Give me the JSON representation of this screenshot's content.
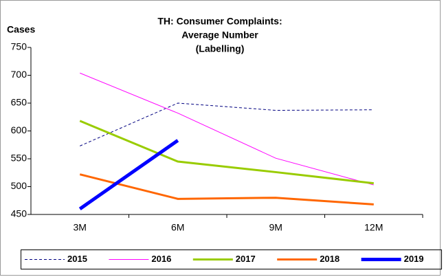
{
  "chart_data": {
    "type": "line",
    "title": [
      "TH: Consumer Complaints:",
      "Average Number",
      "(Labelling)"
    ],
    "y_label": "Cases",
    "categories": [
      "3M",
      "6M",
      "9M",
      "12M"
    ],
    "series": [
      {
        "name": "2015",
        "color": "#000080",
        "width": 1,
        "dashed": true,
        "values": [
          573,
          650,
          637,
          638
        ]
      },
      {
        "name": "2016",
        "color": "#ff00ff",
        "width": 1,
        "dashed": false,
        "values": [
          704,
          632,
          551,
          503
        ]
      },
      {
        "name": "2017",
        "color": "#99cc00",
        "width": 3,
        "dashed": false,
        "values": [
          618,
          545,
          526,
          506
        ]
      },
      {
        "name": "2018",
        "color": "#ff6600",
        "width": 3,
        "dashed": false,
        "values": [
          522,
          478,
          480,
          468
        ]
      },
      {
        "name": "2019",
        "color": "#0000ff",
        "width": 5,
        "dashed": false,
        "values": [
          460,
          583,
          null,
          null
        ]
      }
    ],
    "ylim": [
      450,
      750
    ],
    "yticks": [
      450,
      500,
      550,
      600,
      650,
      700,
      750
    ],
    "legend": "bottom"
  }
}
